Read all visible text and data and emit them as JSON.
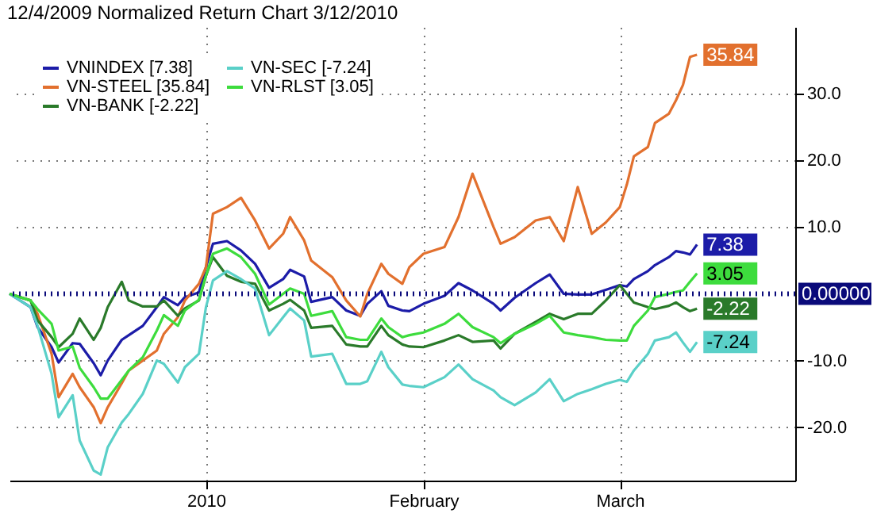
{
  "chart_data": {
    "type": "line",
    "title": "12/4/2009 Normalized Return Chart 3/12/2010",
    "x": [
      "2009-12-04",
      "2009-12-07",
      "2009-12-08",
      "2009-12-10",
      "2009-12-11",
      "2009-12-13",
      "2009-12-14",
      "2009-12-16",
      "2009-12-17",
      "2009-12-18",
      "2009-12-20",
      "2009-12-21",
      "2009-12-23",
      "2009-12-25",
      "2009-12-26",
      "2009-12-28",
      "2009-12-29",
      "2009-12-31",
      "2010-01-01",
      "2010-01-02",
      "2010-01-04",
      "2010-01-06",
      "2010-01-08",
      "2010-01-10",
      "2010-01-12",
      "2010-01-13",
      "2010-01-15",
      "2010-01-16",
      "2010-01-19",
      "2010-01-21",
      "2010-01-23",
      "2010-01-24",
      "2010-01-26",
      "2010-01-27",
      "2010-01-29",
      "2010-01-30",
      "2010-02-01",
      "2010-02-04",
      "2010-02-06",
      "2010-02-08",
      "2010-02-11",
      "2010-02-12",
      "2010-02-14",
      "2010-02-17",
      "2010-02-19",
      "2010-02-21",
      "2010-02-23",
      "2010-02-25",
      "2010-02-27",
      "2010-03-01",
      "2010-03-02",
      "2010-03-03",
      "2010-03-05",
      "2010-03-06",
      "2010-03-08",
      "2010-03-09",
      "2010-03-10",
      "2010-03-11",
      "2010-03-12"
    ],
    "series": [
      {
        "name": "VNINDEX [7.38]",
        "color": "#1c1ca8",
        "values": [
          0,
          -2,
          -5,
          -8,
          -10.3,
          -7.4,
          -7.5,
          -10.4,
          -12.2,
          -10,
          -6.9,
          -6.2,
          -4.8,
          -2,
          -0.5,
          -1.7,
          -0.5,
          0.2,
          4,
          7.5,
          7.9,
          6.5,
          4.5,
          0.9,
          2.2,
          3.6,
          2.6,
          -1.2,
          -0.5,
          -2.5,
          -3.3,
          -1.5,
          0.4,
          -1.8,
          -2.5,
          -2.6,
          -1.5,
          -0.3,
          1.6,
          0.5,
          -1.5,
          -2.5,
          -0.6,
          1.6,
          2.9,
          0,
          -0.1,
          -0.1,
          0.6,
          1.3,
          1.1,
          2.2,
          3.4,
          4.3,
          5.5,
          6.4,
          6.2,
          5.9,
          7.38
        ],
        "value_labels": [
          null,
          null,
          null,
          null,
          null,
          null,
          null,
          null,
          null,
          null,
          null,
          null,
          null,
          null,
          null,
          null,
          null,
          null,
          null,
          null,
          null,
          null,
          null,
          null,
          null,
          null,
          null,
          null,
          null,
          null,
          null,
          null,
          null,
          null,
          null,
          null,
          null,
          null,
          null,
          null,
          null,
          null,
          null,
          null,
          null,
          null,
          null,
          null,
          null,
          null,
          null,
          null,
          null,
          null,
          null,
          null,
          null,
          null,
          "7.38"
        ]
      },
      {
        "name": "VN-STEEL [35.84]",
        "color": "#e2702e",
        "values": [
          0,
          -1,
          -3,
          -9,
          -15.5,
          -12,
          -14,
          -17,
          -19.4,
          -17,
          -13.4,
          -11.5,
          -10,
          -8.5,
          -6,
          -3.5,
          -1,
          1.5,
          4,
          12,
          13,
          14.4,
          11,
          6.8,
          9,
          11.5,
          8,
          5,
          2.5,
          -1,
          -3.4,
          0,
          4.5,
          3,
          1.5,
          4,
          6,
          7,
          11.5,
          18,
          10,
          7.5,
          8.5,
          11,
          11.5,
          7.9,
          16,
          9,
          10.7,
          13,
          16.4,
          20.6,
          22,
          25.6,
          27,
          29,
          31.3,
          35.5,
          35.84
        ],
        "value_labels": [
          null,
          null,
          null,
          null,
          null,
          null,
          null,
          null,
          null,
          null,
          null,
          null,
          null,
          null,
          null,
          null,
          null,
          null,
          null,
          null,
          null,
          null,
          null,
          null,
          null,
          null,
          null,
          null,
          null,
          null,
          null,
          null,
          null,
          null,
          null,
          null,
          null,
          null,
          null,
          null,
          null,
          null,
          null,
          null,
          null,
          null,
          null,
          null,
          null,
          null,
          null,
          null,
          null,
          null,
          null,
          null,
          null,
          null,
          "35.84"
        ]
      },
      {
        "name": "VN-BANK [-2.22]",
        "color": "#2a7a2a",
        "values": [
          0,
          -1,
          -4,
          -6.5,
          -8,
          -6,
          -3.7,
          -6.9,
          -5.1,
          -2,
          1.8,
          -1,
          -1.9,
          -1.9,
          -1,
          -3.3,
          -2.2,
          -1,
          2.7,
          5.5,
          2.7,
          1.8,
          1.5,
          -2.5,
          -1.5,
          -0.9,
          -2.5,
          -5.1,
          -4.8,
          -7.6,
          -7.9,
          -7.9,
          -4.8,
          -6.2,
          -7.6,
          -7.9,
          -8,
          -7,
          -6.2,
          -7.2,
          -7,
          -8.2,
          -6,
          -4.2,
          -3,
          -3.8,
          -3,
          -3,
          -1,
          1.3,
          0,
          -1.3,
          -2,
          -2.3,
          -1.8,
          -1.3,
          -2,
          -2.6,
          -2.22
        ],
        "value_labels": [
          null,
          null,
          null,
          null,
          null,
          null,
          null,
          null,
          null,
          null,
          null,
          null,
          null,
          null,
          null,
          null,
          null,
          null,
          null,
          null,
          null,
          null,
          null,
          null,
          null,
          null,
          null,
          null,
          null,
          null,
          null,
          null,
          null,
          null,
          null,
          null,
          null,
          null,
          null,
          null,
          null,
          null,
          null,
          null,
          null,
          null,
          null,
          null,
          null,
          null,
          null,
          null,
          null,
          null,
          null,
          null,
          null,
          null,
          "-2.22"
        ]
      },
      {
        "name": "VN-SEC [-7.24]",
        "color": "#5ad0c8",
        "values": [
          0,
          -2,
          -4.8,
          -12,
          -18.5,
          -15.2,
          -22,
          -26.5,
          -27.1,
          -23,
          -19.3,
          -18,
          -15,
          -10,
          -10.5,
          -13.3,
          -11,
          -9,
          -2,
          2,
          3.4,
          2.2,
          0.8,
          -6.2,
          -3.5,
          -2.2,
          -4,
          -9.4,
          -9,
          -13.5,
          -13.5,
          -13.1,
          -8.7,
          -11,
          -13.6,
          -13.8,
          -14,
          -12.5,
          -10.6,
          -12.8,
          -14.5,
          -15.5,
          -16.7,
          -14.8,
          -12.8,
          -16.1,
          -15,
          -14.3,
          -13.5,
          -12.9,
          -13.2,
          -11.5,
          -9,
          -7,
          -6.5,
          -5.8,
          -7.3,
          -8.7,
          -7.24
        ],
        "value_labels": [
          null,
          null,
          null,
          null,
          null,
          null,
          null,
          null,
          null,
          null,
          null,
          null,
          null,
          null,
          null,
          null,
          null,
          null,
          null,
          null,
          null,
          null,
          null,
          null,
          null,
          null,
          null,
          null,
          null,
          null,
          null,
          null,
          null,
          null,
          null,
          null,
          null,
          null,
          null,
          null,
          null,
          null,
          null,
          null,
          null,
          null,
          null,
          null,
          null,
          null,
          null,
          null,
          null,
          null,
          null,
          null,
          null,
          null,
          "-7.24"
        ]
      },
      {
        "name": "VN-RLST [3.05]",
        "color": "#3ddc3d",
        "values": [
          0,
          -1,
          -2.3,
          -4.5,
          -8.5,
          -7.9,
          -11.1,
          -14,
          -15.7,
          -15.7,
          -12.9,
          -11.5,
          -9.5,
          -5.5,
          -3.2,
          -4.8,
          -2.5,
          -0.9,
          2.7,
          6,
          6.8,
          5.5,
          3,
          -1.6,
          0,
          0.8,
          0,
          -3.3,
          -2.6,
          -6.5,
          -6.9,
          -6.9,
          -3.7,
          -5,
          -6.5,
          -6.2,
          -5.8,
          -4.5,
          -3,
          -5,
          -6.5,
          -7.4,
          -6,
          -4.5,
          -3.3,
          -5.8,
          -6.2,
          -6.5,
          -6.9,
          -7,
          -7,
          -4.8,
          -2.5,
          -0.5,
          0,
          0.3,
          0.5,
          1.8,
          3.05
        ],
        "value_labels": [
          null,
          null,
          null,
          null,
          null,
          null,
          null,
          null,
          null,
          null,
          null,
          null,
          null,
          null,
          null,
          null,
          null,
          null,
          null,
          null,
          null,
          null,
          null,
          null,
          null,
          null,
          null,
          null,
          null,
          null,
          null,
          null,
          null,
          null,
          null,
          null,
          null,
          null,
          null,
          null,
          null,
          null,
          null,
          null,
          null,
          null,
          null,
          null,
          null,
          null,
          null,
          null,
          null,
          null,
          null,
          null,
          null,
          null,
          "3.05"
        ]
      }
    ],
    "xlim": [
      "2009-12-04",
      "2010-03-26"
    ],
    "xticks": [
      {
        "value": "2010-01-01",
        "label": "2010"
      },
      {
        "value": "2010-02-01",
        "label": "February"
      },
      {
        "value": "2010-03-01",
        "label": "March"
      }
    ],
    "ylim": [
      -28,
      40
    ],
    "yticks": [
      {
        "value": -20,
        "label": "-20.0"
      },
      {
        "value": -10,
        "label": "-10.0"
      },
      {
        "value": 10,
        "label": "10.0"
      },
      {
        "value": 20,
        "label": "20.0"
      },
      {
        "value": 30,
        "label": "30.0"
      }
    ],
    "ref_lines": [
      {
        "axis": "y",
        "value": 0,
        "label": "0.00000",
        "color": "#0a0a7a",
        "line_style": "dotted"
      }
    ],
    "grid": true,
    "legend": "top left",
    "marker": "none",
    "line_style": "solid"
  }
}
